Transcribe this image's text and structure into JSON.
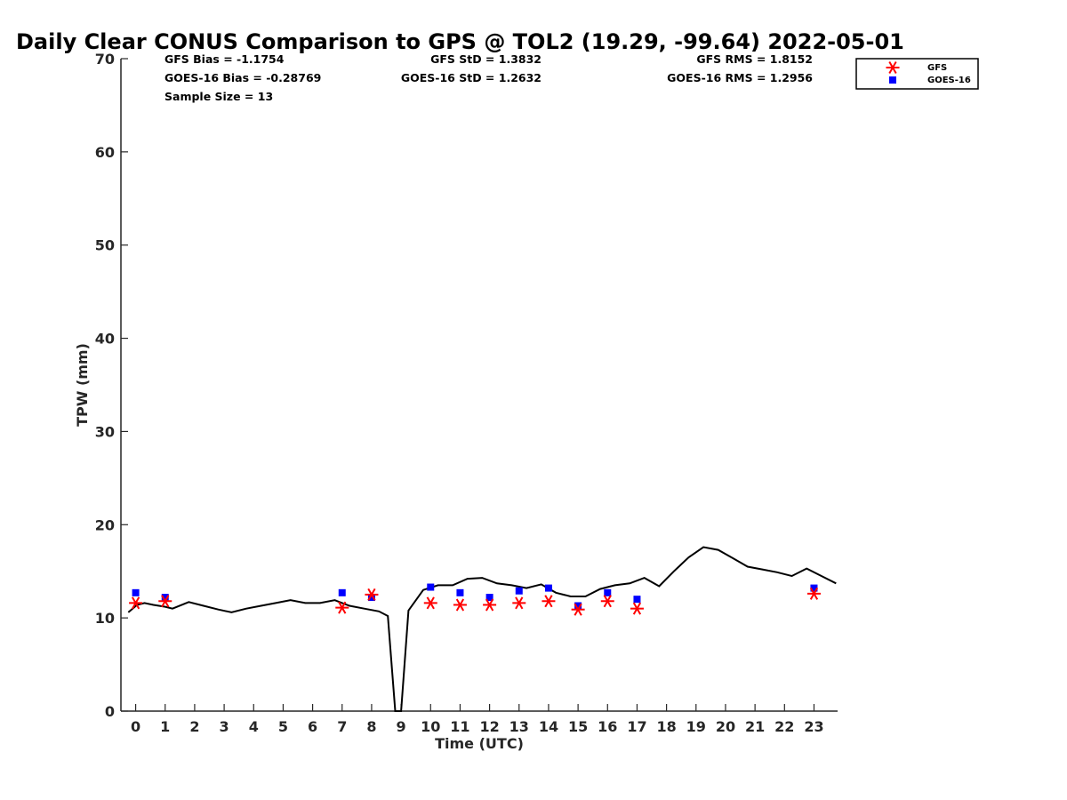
{
  "chart_data": {
    "type": "scatter",
    "title": "Daily Clear CONUS Comparison to GPS @ TOL2 (19.29, -99.64) 2022-05-01",
    "xlabel": "Time (UTC)",
    "ylabel": "TPW (mm)",
    "xlim": [
      -0.5,
      23.8
    ],
    "ylim": [
      0,
      70
    ],
    "xticks": [
      0,
      1,
      2,
      3,
      4,
      5,
      6,
      7,
      8,
      9,
      10,
      11,
      12,
      13,
      14,
      15,
      16,
      17,
      18,
      19,
      20,
      21,
      22,
      23
    ],
    "yticks": [
      0,
      10,
      20,
      30,
      40,
      50,
      60,
      70
    ],
    "grid": false,
    "legend_position": "top-right",
    "stats": {
      "gfs_bias": "GFS Bias = -1.1754",
      "goes_bias": "GOES-16 Bias = -0.28769",
      "sample_size": "Sample Size = 13",
      "gfs_std": "GFS StD = 1.3832",
      "goes_std": "GOES-16 StD = 1.2632",
      "gfs_rms": "GFS RMS = 1.8152",
      "goes_rms": "GOES-16 RMS = 1.2956"
    },
    "series": [
      {
        "name": "GPS",
        "kind": "line",
        "color": "#000000",
        "x": [
          -0.25,
          0.05,
          0.3,
          0.6,
          1.0,
          1.25,
          1.8,
          2.3,
          2.8,
          3.25,
          3.75,
          4.25,
          4.75,
          5.25,
          5.75,
          6.25,
          6.75,
          7.25,
          7.75,
          8.25,
          8.55,
          8.8,
          9.0,
          9.25,
          9.75,
          10.25,
          10.75,
          11.25,
          11.75,
          12.25,
          12.75,
          13.25,
          13.75,
          14.25,
          14.75,
          15.25,
          15.75,
          16.25,
          16.75,
          17.25,
          17.75,
          18.25,
          18.75,
          19.25,
          19.75,
          20.25,
          20.75,
          21.25,
          21.75,
          22.25,
          22.75,
          23.25,
          23.75
        ],
        "y": [
          10.6,
          11.4,
          11.6,
          11.4,
          11.2,
          11.0,
          11.7,
          11.3,
          10.9,
          10.6,
          11.0,
          11.3,
          11.6,
          11.9,
          11.6,
          11.6,
          11.9,
          11.3,
          11.0,
          10.7,
          10.2,
          0,
          0,
          10.8,
          13.0,
          13.5,
          13.5,
          14.2,
          14.3,
          13.7,
          13.5,
          13.2,
          13.6,
          12.7,
          12.3,
          12.3,
          13.1,
          13.5,
          13.7,
          14.3,
          13.4,
          15.0,
          16.5,
          17.6,
          17.3,
          16.4,
          15.5,
          15.2,
          14.9,
          14.5,
          15.3,
          14.5,
          13.7
        ]
      },
      {
        "name": "GFS",
        "kind": "marker",
        "marker": "asterisk",
        "color": "#ff0000",
        "x": [
          0,
          1,
          7,
          8,
          10,
          11,
          12,
          13,
          14,
          15,
          16,
          17,
          23
        ],
        "y": [
          11.6,
          11.8,
          11.1,
          12.5,
          11.6,
          11.4,
          11.4,
          11.6,
          11.8,
          10.9,
          11.8,
          11.0,
          12.6
        ]
      },
      {
        "name": "GOES-16",
        "kind": "marker",
        "marker": "square",
        "color": "#0000ff",
        "x": [
          0,
          1,
          7,
          8,
          10,
          11,
          12,
          13,
          14,
          15,
          16,
          17,
          23
        ],
        "y": [
          12.7,
          12.2,
          12.7,
          12.2,
          13.3,
          12.7,
          12.2,
          12.9,
          13.2,
          11.3,
          12.7,
          12.0,
          13.2
        ]
      }
    ]
  }
}
